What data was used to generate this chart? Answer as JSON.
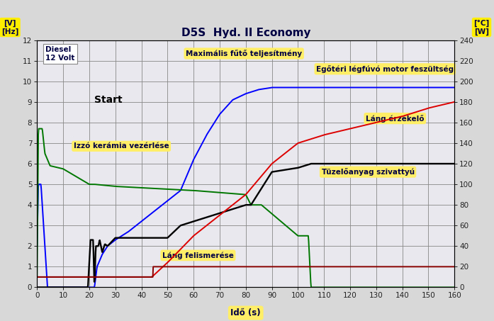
{
  "title": "D5S  Hyd. II Economy",
  "xlabel": "Idő (s)",
  "ylabel_left": "[V]\n[Hz]",
  "ylabel_right": "[°C]\n[W]",
  "xlim": [
    0,
    160
  ],
  "ylim_left": [
    0,
    12
  ],
  "ylim_right": [
    0,
    240
  ],
  "xticks": [
    0,
    10,
    20,
    30,
    40,
    50,
    60,
    70,
    80,
    90,
    100,
    110,
    120,
    130,
    140,
    150,
    160
  ],
  "yticks_left": [
    0,
    1,
    2,
    3,
    4,
    5,
    6,
    7,
    8,
    9,
    10,
    11,
    12
  ],
  "yticks_right": [
    0,
    20,
    40,
    60,
    80,
    100,
    120,
    140,
    160,
    180,
    200,
    220,
    240
  ],
  "bg_color": "#d8d8d8",
  "plot_bg_color": "#e8e8ee",
  "grid_color": "#888888",
  "line_blue": "#0000ff",
  "line_green": "#007700",
  "line_black": "#000000",
  "line_red": "#dd0000",
  "line_darkred": "#880000",
  "ann_bg": "#ffee66",
  "diesel_box_bg": "#ffffff",
  "title_color": "#000044",
  "label_text_color": "#000044",
  "tick_color": "#222222",
  "ylabel_bg": "#ffee00"
}
